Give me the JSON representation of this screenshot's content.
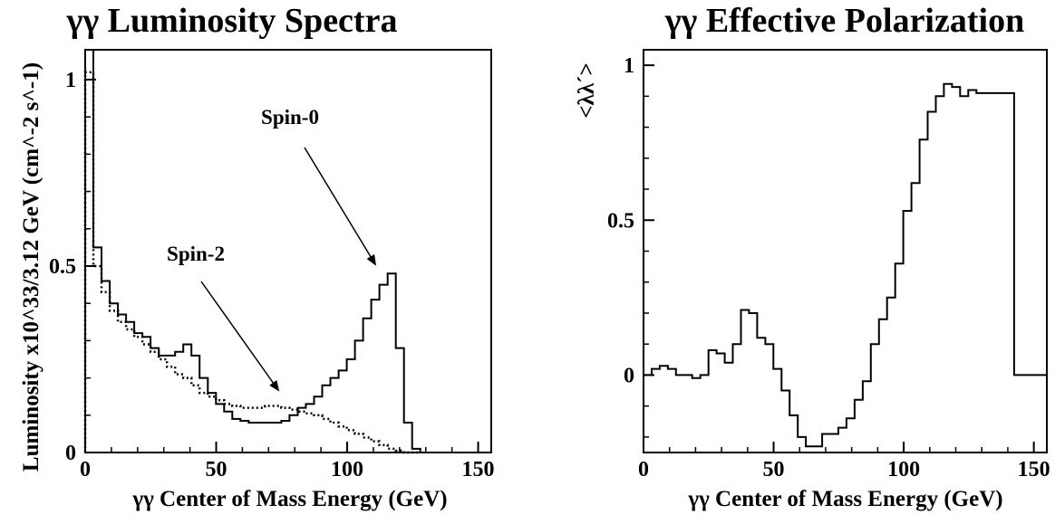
{
  "chart_data": [
    {
      "type": "line",
      "title": "γγ Luminosity Spectra",
      "xlabel": "γγ Center of Mass Energy (GeV)",
      "ylabel": "Luminosity x10^33/3.12 GeV (cm^-2 s^-1)",
      "xlim": [
        0,
        155
      ],
      "ylim": [
        0,
        1.08
      ],
      "xticks": [
        "0",
        "50",
        "100",
        "150"
      ],
      "yticks": [
        "0",
        "0.5",
        "1"
      ],
      "series": [
        {
          "name": "Spin-0",
          "style": "solid",
          "x": [
            1.56,
            4.68,
            7.8,
            10.92,
            14.04,
            17.16,
            20.28,
            23.4,
            26.52,
            29.64,
            32.76,
            35.88,
            39.0,
            42.12,
            45.24,
            48.36,
            51.48,
            54.6,
            57.72,
            60.84,
            63.96,
            67.08,
            70.2,
            73.32,
            76.44,
            79.56,
            82.68,
            85.8,
            88.92,
            92.04,
            95.16,
            98.28,
            101.4,
            104.52,
            107.64,
            110.76,
            113.88,
            117.0,
            120.12,
            123.24,
            126.36,
            129.48,
            132.6
          ],
          "y": [
            1.08,
            0.55,
            0.46,
            0.4,
            0.37,
            0.35,
            0.32,
            0.31,
            0.28,
            0.26,
            0.26,
            0.27,
            0.29,
            0.26,
            0.2,
            0.16,
            0.13,
            0.11,
            0.09,
            0.085,
            0.08,
            0.08,
            0.08,
            0.08,
            0.085,
            0.1,
            0.12,
            0.13,
            0.15,
            0.18,
            0.2,
            0.22,
            0.25,
            0.3,
            0.36,
            0.41,
            0.45,
            0.48,
            0.28,
            0.08,
            0.01,
            0.0,
            0.0
          ]
        },
        {
          "name": "Spin-2",
          "style": "dotted",
          "x": [
            1.56,
            4.68,
            7.8,
            10.92,
            14.04,
            17.16,
            20.28,
            23.4,
            26.52,
            29.64,
            32.76,
            35.88,
            39.0,
            42.12,
            45.24,
            48.36,
            51.48,
            54.6,
            57.72,
            60.84,
            63.96,
            67.08,
            70.2,
            73.32,
            76.44,
            79.56,
            82.68,
            85.8,
            88.92,
            92.04,
            95.16,
            98.28,
            101.4,
            104.52,
            107.64,
            110.76,
            113.88,
            117.0,
            120.12,
            123.24,
            126.36
          ],
          "y": [
            1.02,
            0.5,
            0.43,
            0.38,
            0.35,
            0.33,
            0.31,
            0.29,
            0.27,
            0.25,
            0.23,
            0.21,
            0.2,
            0.18,
            0.16,
            0.15,
            0.14,
            0.13,
            0.125,
            0.12,
            0.12,
            0.12,
            0.125,
            0.125,
            0.12,
            0.115,
            0.11,
            0.105,
            0.1,
            0.09,
            0.08,
            0.07,
            0.06,
            0.05,
            0.04,
            0.03,
            0.02,
            0.01,
            0.005,
            0.0,
            0.0
          ]
        }
      ],
      "annotations": [
        {
          "text": "Spin-0"
        },
        {
          "text": "Spin-2"
        }
      ]
    },
    {
      "type": "line",
      "title": "γγ Effective Polarization",
      "xlabel": "γγ Center of Mass Energy (GeV)",
      "ylabel": "<λλ´>",
      "xlim": [
        0,
        155
      ],
      "ylim": [
        -0.25,
        1.05
      ],
      "xticks": [
        "0",
        "50",
        "100",
        "150"
      ],
      "yticks": [
        "0",
        "0.5",
        "1"
      ],
      "series": [
        {
          "name": "",
          "style": "solid",
          "x": [
            1.56,
            4.68,
            7.8,
            10.92,
            14.04,
            17.16,
            20.28,
            23.4,
            26.52,
            29.64,
            32.76,
            35.88,
            39.0,
            42.12,
            45.24,
            48.36,
            51.48,
            54.6,
            57.72,
            60.84,
            63.96,
            67.08,
            70.2,
            73.32,
            76.44,
            79.56,
            82.68,
            85.8,
            88.92,
            92.04,
            95.16,
            98.28,
            101.4,
            104.52,
            107.64,
            110.76,
            113.88,
            117.0,
            120.12,
            123.24,
            126.36,
            129.48,
            132.6,
            144.0,
            154.0
          ],
          "y": [
            0.0,
            0.02,
            0.03,
            0.02,
            0.0,
            0.0,
            -0.01,
            0.0,
            0.08,
            0.07,
            0.04,
            0.1,
            0.21,
            0.2,
            0.12,
            0.1,
            0.02,
            -0.05,
            -0.13,
            -0.2,
            -0.23,
            -0.23,
            -0.19,
            -0.19,
            -0.17,
            -0.14,
            -0.08,
            -0.02,
            0.1,
            0.18,
            0.25,
            0.36,
            0.53,
            0.62,
            0.76,
            0.85,
            0.9,
            0.94,
            0.93,
            0.9,
            0.92,
            0.91,
            0.91,
            0.0,
            0.0
          ]
        }
      ]
    }
  ]
}
